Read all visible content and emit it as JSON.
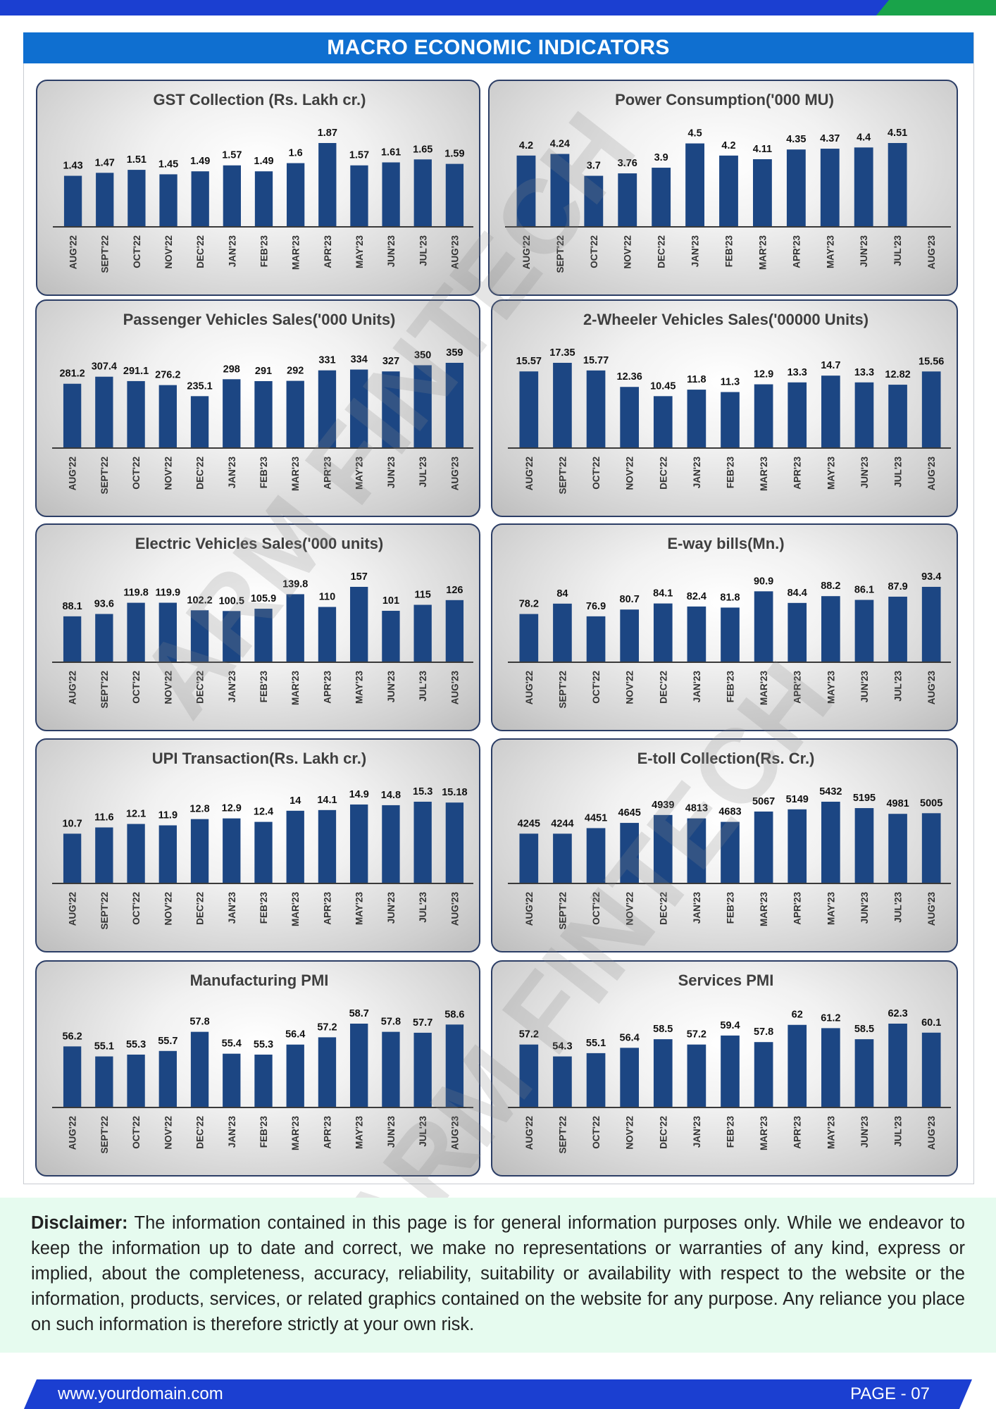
{
  "header": {
    "title": "MACRO ECONOMIC INDICATORS"
  },
  "chart_data": [
    {
      "type": "bar",
      "title": "GST Collection (Rs. Lakh cr.)",
      "categories": [
        "AUG'22",
        "SEPT'22",
        "OCT'22",
        "NOV'22",
        "DEC'22",
        "JAN'23",
        "FEB'23",
        "MAR'23",
        "APR'23",
        "MAY'23",
        "JUN'23",
        "JUL'23",
        "AUG'23"
      ],
      "values": [
        1.43,
        1.47,
        1.51,
        1.45,
        1.49,
        1.57,
        1.49,
        1.6,
        1.87,
        1.57,
        1.61,
        1.65,
        1.59
      ],
      "labels": [
        "1.43",
        "1.47",
        "1.51",
        "1.45",
        "1.49",
        "1.57",
        "1.49",
        "1.6",
        "1.87",
        "1.57",
        "1.61",
        "1.65",
        "1.59"
      ]
    },
    {
      "type": "bar",
      "title": "Power Consumption('000 MU)",
      "categories": [
        "AUG'22",
        "SEPT'22",
        "OCT'22",
        "NOV'22",
        "DEC'22",
        "JAN'23",
        "FEB'23",
        "MAR'23",
        "APR'23",
        "MAY'23",
        "JUN'23",
        "JUL'23",
        "AUG'23"
      ],
      "values": [
        4.2,
        4.24,
        3.7,
        3.76,
        3.9,
        4.5,
        4.2,
        4.11,
        4.35,
        4.37,
        4.4,
        4.51,
        null
      ],
      "labels": [
        "4.2",
        "4.24",
        "3.7",
        "3.76",
        "3.9",
        "4.5",
        "4.2",
        "4.11",
        "4.35",
        "4.37",
        "4.4",
        "4.51",
        ""
      ]
    },
    {
      "type": "bar",
      "title": "Passenger Vehicles Sales('000 Units)",
      "categories": [
        "AUG'22",
        "SEPT'22",
        "OCT'22",
        "NOV'22",
        "DEC'22",
        "JAN'23",
        "FEB'23",
        "MAR'23",
        "APR'23",
        "MAY'23",
        "JUN'23",
        "JUL'23",
        "AUG'23"
      ],
      "values": [
        281.2,
        307.4,
        291.1,
        276.2,
        235.1,
        298,
        291,
        292,
        331,
        334,
        327,
        350,
        359
      ],
      "labels": [
        "281.2",
        "307.4",
        "291.1",
        "276.2",
        "235.1",
        "298",
        "291",
        "292",
        "331",
        "334",
        "327",
        "350",
        "359"
      ]
    },
    {
      "type": "bar",
      "title": "2-Wheeler Vehicles Sales('00000 Units)",
      "categories": [
        "AUG'22",
        "SEPT'22",
        "OCT'22",
        "NOV'22",
        "DEC'22",
        "JAN'23",
        "FEB'23",
        "MAR'23",
        "APR'23",
        "MAY'23",
        "JUN'23",
        "JUL'23",
        "AUG'23"
      ],
      "values": [
        15.57,
        17.35,
        15.77,
        12.36,
        10.45,
        11.8,
        11.3,
        12.9,
        13.3,
        14.7,
        13.3,
        12.82,
        15.56
      ],
      "labels": [
        "15.57",
        "17.35",
        "15.77",
        "12.36",
        "10.45",
        "11.8",
        "11.3",
        "12.9",
        "13.3",
        "14.7",
        "13.3",
        "12.82",
        "15.56"
      ]
    },
    {
      "type": "bar",
      "title": "Electric Vehicles Sales('000 units)",
      "categories": [
        "AUG'22",
        "SEPT'22",
        "OCT'22",
        "NOV'22",
        "DEC'22",
        "JAN'23",
        "FEB'23",
        "MAR'23",
        "APR'23",
        "MAY'23",
        "JUN'23",
        "JUL'23",
        "AUG'23"
      ],
      "values": [
        88.1,
        93.6,
        119.8,
        119.9,
        102.2,
        100.5,
        105.9,
        139.8,
        110,
        157,
        101,
        115,
        126
      ],
      "labels": [
        "88.1",
        "93.6",
        "119.8",
        "119.9",
        "102.2",
        "100.5",
        "105.9",
        "139.8",
        "110",
        "157",
        "101",
        "115",
        "126"
      ]
    },
    {
      "type": "bar",
      "title": "E-way bills(Mn.)",
      "categories": [
        "AUG'22",
        "SEPT'22",
        "OCT'22",
        "NOV'22",
        "DEC'22",
        "JAN'23",
        "FEB'23",
        "MAR'23",
        "APR'23",
        "MAY'23",
        "JUN'23",
        "JUL'23",
        "AUG'23"
      ],
      "values": [
        78.2,
        84,
        76.9,
        80.7,
        84.1,
        82.4,
        81.8,
        90.9,
        84.4,
        88.2,
        86.1,
        87.9,
        93.4
      ],
      "labels": [
        "78.2",
        "84",
        "76.9",
        "80.7",
        "84.1",
        "82.4",
        "81.8",
        "90.9",
        "84.4",
        "88.2",
        "86.1",
        "87.9",
        "93.4"
      ]
    },
    {
      "type": "bar",
      "title": "UPI Transaction(Rs. Lakh cr.)",
      "categories": [
        "AUG'22",
        "SEPT'22",
        "OCT'22",
        "NOV'22",
        "DEC'22",
        "JAN'23",
        "FEB'23",
        "MAR'23",
        "APR'23",
        "MAY'23",
        "JUN'23",
        "JUL'23",
        "AUG'23"
      ],
      "values": [
        10.7,
        11.6,
        12.1,
        11.9,
        12.8,
        12.9,
        12.4,
        14,
        14.1,
        14.9,
        14.8,
        15.3,
        15.18
      ],
      "labels": [
        "10.7",
        "11.6",
        "12.1",
        "11.9",
        "12.8",
        "12.9",
        "12.4",
        "14",
        "14.1",
        "14.9",
        "14.8",
        "15.3",
        "15.18"
      ]
    },
    {
      "type": "bar",
      "title": "E-toll Collection(Rs. Cr.)",
      "categories": [
        "AUG'22",
        "SEPT'22",
        "OCT'22",
        "NOV'22",
        "DEC'22",
        "JAN'23",
        "FEB'23",
        "MAR'23",
        "APR'23",
        "MAY'23",
        "JUN'23",
        "JUL'23",
        "AUG'23"
      ],
      "values": [
        4245,
        4244,
        4451,
        4645,
        4939,
        4813,
        4683,
        5067,
        5149,
        5432,
        5195,
        4981,
        5005
      ],
      "labels": [
        "4245",
        "4244",
        "4451",
        "4645",
        "4939",
        "4813",
        "4683",
        "5067",
        "5149",
        "5432",
        "5195",
        "4981",
        "5005"
      ]
    },
    {
      "type": "bar",
      "title": "Manufacturing PMI",
      "categories": [
        "AUG'22",
        "SEPT'22",
        "OCT'22",
        "NOV'22",
        "DEC'22",
        "JAN'23",
        "FEB'23",
        "MAR'23",
        "APR'23",
        "MAY'23",
        "JUN'23",
        "JUL'23",
        "AUG'23"
      ],
      "values": [
        56.2,
        55.1,
        55.3,
        55.7,
        57.8,
        55.4,
        55.3,
        56.4,
        57.2,
        58.7,
        57.8,
        57.7,
        58.6
      ],
      "labels": [
        "56.2",
        "55.1",
        "55.3",
        "55.7",
        "57.8",
        "55.4",
        "55.3",
        "56.4",
        "57.2",
        "58.7",
        "57.8",
        "57.7",
        "58.6"
      ]
    },
    {
      "type": "bar",
      "title": "Services PMI",
      "categories": [
        "AUG'22",
        "SEPT'22",
        "OCT'22",
        "NOV'22",
        "DEC'22",
        "JAN'23",
        "FEB'23",
        "MAR'23",
        "APR'23",
        "MAY'23",
        "JUN'23",
        "JUL'23",
        "AUG'23"
      ],
      "values": [
        57.2,
        54.3,
        55.1,
        56.4,
        58.5,
        57.2,
        59.4,
        57.8,
        62,
        61.2,
        58.5,
        62.3,
        60.1
      ],
      "labels": [
        "57.2",
        "54.3",
        "55.1",
        "56.4",
        "58.5",
        "57.2",
        "59.4",
        "57.8",
        "62",
        "61.2",
        "58.5",
        "62.3",
        "60.1"
      ]
    }
  ],
  "colors": {
    "bar": "#1c4683",
    "title_band": "#0f6fd0",
    "brand_blue": "#1b3fd1",
    "brand_green": "#19a34a",
    "disclaimer_bg": "#e6fbef"
  },
  "watermark": {
    "text": "ARM FINTECH"
  },
  "disclaimer": {
    "label": "Disclaimer:",
    "text": " The information contained in this page is for general information purposes only.  While we endeavor to keep the information up to date and correct, we make no representations or warranties of any kind, express or implied, about the completeness, accuracy, reliability, suitability or availability with respect to the website or the information, products, services, or related graphics contained on the website for any purpose. Any reliance you place on such information is therefore strictly at your own risk."
  },
  "footer": {
    "url": "www.yourdomain.com",
    "page": "PAGE - 07"
  }
}
